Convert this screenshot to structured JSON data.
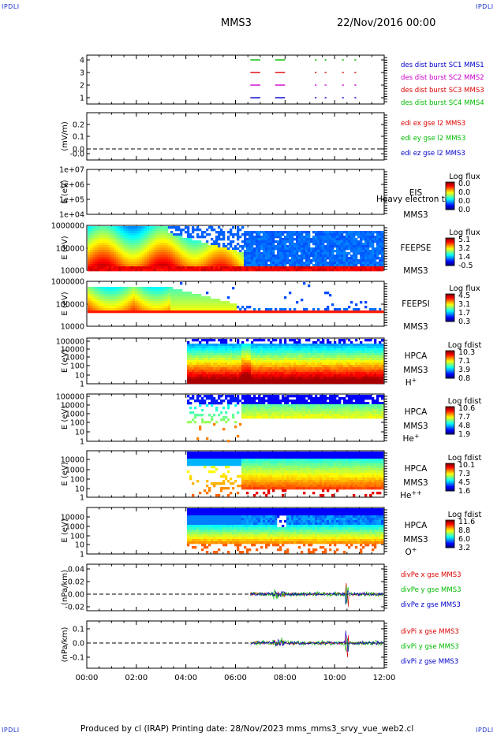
{
  "header": {
    "corner_tl": "IPDLI",
    "corner_tr": "IPDLI",
    "corner_bl": "IPDLI",
    "corner_br": "IPDLI",
    "title": "MMS3",
    "date": "22/Nov/2016 00:00"
  },
  "footer": {
    "text": "Produced by cl (IRAP)   Printing date: 28/Nov/2023   mms_mms3_srvy_vue_web2.cl"
  },
  "chart_data": {
    "type": "multi-panel time series",
    "x_tick_labels": [
      "00:00",
      "02:00",
      "04:00",
      "06:00",
      "08:00",
      "10:00",
      "12:00"
    ],
    "x_range_hours": [
      0,
      12
    ],
    "panels": [
      {
        "id": "burst",
        "type": "timeline",
        "yticks": [
          "4",
          "3",
          "2",
          "1"
        ],
        "legend": [
          {
            "label": "des dist burst SC1 MMS1",
            "color": "#0000cc"
          },
          {
            "label": "des dist burst SC2 MMS2",
            "color": "#cc00cc"
          },
          {
            "label": "des dist burst SC3 MMS3",
            "color": "#dd0000"
          },
          {
            "label": "des dist burst SC4 MMS4",
            "color": "#00bb00"
          }
        ],
        "intervals_hours": [
          [
            6.6,
            7.0
          ],
          [
            7.6,
            8.0
          ],
          [
            9.2,
            9.27
          ],
          [
            9.6,
            9.67
          ],
          [
            10.3,
            10.37
          ],
          [
            10.8,
            10.87
          ]
        ]
      },
      {
        "id": "edi",
        "type": "line",
        "ylabel": "(mV/m)",
        "yticks": [
          "0.2",
          "0.1",
          "0.0",
          "-0.0"
        ],
        "legend": [
          {
            "label": "edi ex gse l2 MMS3",
            "color": "#dd0000"
          },
          {
            "label": "edi ey gse l2 MMS3",
            "color": "#00bb00"
          },
          {
            "label": "edi ez gse l2 MMS3",
            "color": "#0000cc"
          }
        ]
      },
      {
        "id": "eis",
        "type": "heatmap",
        "ylabel": "E (eV)",
        "yticks": [
          "1e+07",
          "1e+06",
          "1e+05",
          "1e+04"
        ],
        "labels": [
          "EIS",
          "Heavy electron top",
          "MMS3"
        ],
        "colorbar_title": "Log flux",
        "colorbar_ticks": [
          "0.0",
          "0.0",
          "0.0",
          "0.0"
        ]
      },
      {
        "id": "feepse",
        "type": "heatmap",
        "ylabel": "E (eV)",
        "yticks": [
          "1000000",
          "100000",
          "10000"
        ],
        "labels": [
          "FEEPSE",
          "MMS3"
        ],
        "colorbar_title": "Log flux",
        "colorbar_ticks": [
          "5.1",
          "3.2",
          "1.4",
          "-0.5"
        ]
      },
      {
        "id": "feepsi",
        "type": "heatmap",
        "ylabel": "E (eV)",
        "yticks": [
          "1000000",
          "100000",
          "10000"
        ],
        "labels": [
          "FEEPSI",
          "MMS3"
        ],
        "colorbar_title": "Log flux",
        "colorbar_ticks": [
          "4.5",
          "3.1",
          "1.7",
          "0.3"
        ]
      },
      {
        "id": "hpca_h",
        "type": "heatmap",
        "ylabel": "E (eV)",
        "yticks": [
          "100000",
          "10000",
          "1000",
          "100",
          "10",
          "1"
        ],
        "labels": [
          "HPCA",
          "MMS3",
          "H+"
        ],
        "colorbar_title": "Log fdist",
        "colorbar_ticks": [
          "10.3",
          "7.1",
          "3.9",
          "0.8"
        ]
      },
      {
        "id": "hpca_he",
        "type": "heatmap",
        "ylabel": "E (eV)",
        "yticks": [
          "100000",
          "10000",
          "1000",
          "100",
          "10",
          "1"
        ],
        "labels": [
          "HPCA",
          "MMS3",
          "He+"
        ],
        "colorbar_title": "Log fdist",
        "colorbar_ticks": [
          "10.6",
          "7.7",
          "4.8",
          "1.9"
        ]
      },
      {
        "id": "hpca_hepp",
        "type": "heatmap",
        "ylabel": "E (eV)",
        "yticks": [
          "10000",
          "1000",
          "100",
          "10",
          "1"
        ],
        "labels": [
          "HPCA",
          "MMS3",
          "He++"
        ],
        "colorbar_title": "Log fdist",
        "colorbar_ticks": [
          "10.1",
          "7.3",
          "4.5",
          "1.6"
        ]
      },
      {
        "id": "hpca_o",
        "type": "heatmap",
        "ylabel": "E (eV)",
        "yticks": [
          "10000",
          "1000",
          "100",
          "10",
          "1"
        ],
        "labels": [
          "HPCA",
          "MMS3",
          "O+"
        ],
        "colorbar_title": "Log fdist",
        "colorbar_ticks": [
          "11.6",
          "8.8",
          "6.0",
          "3.2"
        ]
      },
      {
        "id": "divpe",
        "type": "line",
        "ylabel": "(nPa/km)",
        "yticks": [
          "0.04",
          "0.02",
          "0.00",
          "-0.02"
        ],
        "legend": [
          {
            "label": "divPe x gse MMS3",
            "color": "#dd0000"
          },
          {
            "label": "divPe y gse MMS3",
            "color": "#00bb00"
          },
          {
            "label": "divPe z gse MMS3",
            "color": "#0000cc"
          }
        ]
      },
      {
        "id": "divpi",
        "type": "line",
        "ylabel": "(nPa/km)",
        "yticks": [
          "0.1",
          "0.0",
          "-0.1"
        ],
        "legend": [
          {
            "label": "divPi x gse MMS3",
            "color": "#dd0000"
          },
          {
            "label": "divPi y gse MMS3",
            "color": "#00bb00"
          },
          {
            "label": "divPi z gse MMS3",
            "color": "#0000cc"
          }
        ]
      }
    ]
  }
}
